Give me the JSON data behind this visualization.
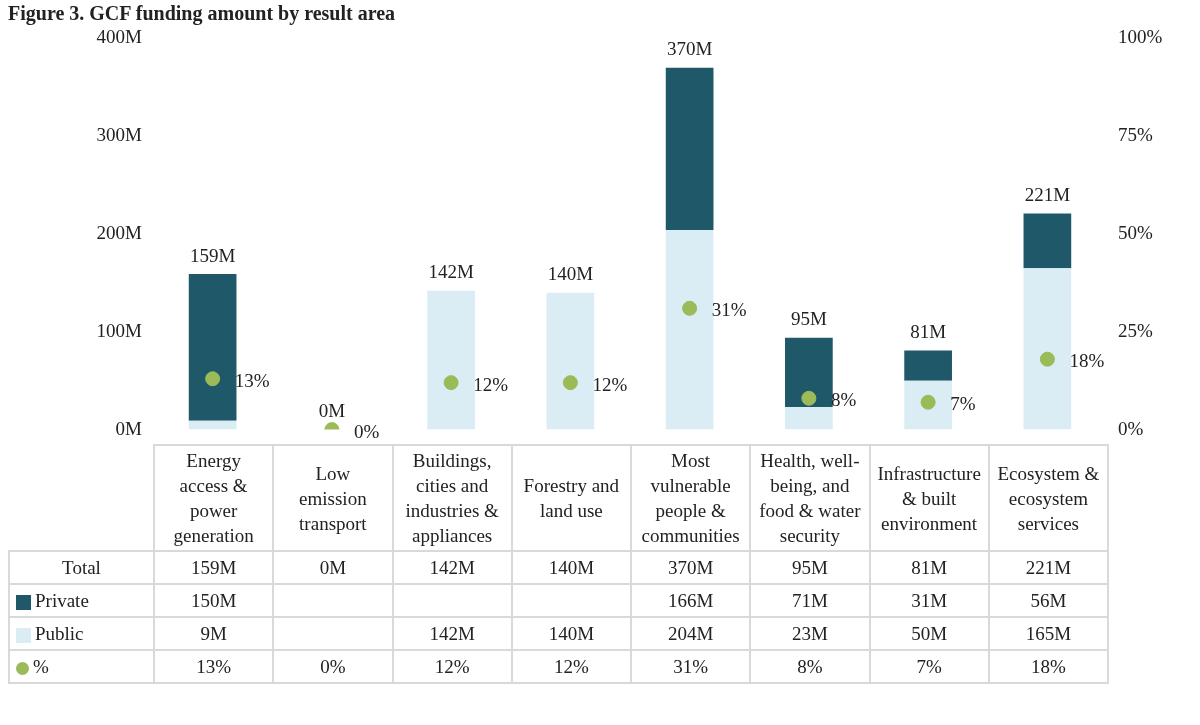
{
  "chart_data": {
    "type": "bar",
    "title": "Figure 3. GCF funding amount by result area",
    "stacked": true,
    "legend": "bottom",
    "annotations": [
      "Total"
    ],
    "categories": [
      "Energy access & power generation",
      "Low emission transport",
      "Buildings, cities and industries & appliances",
      "Forestry and land use",
      "Most vulnerable people & communities",
      "Health, well-being, and food & water security",
      "Infrastructure & built environment",
      "Ecosystem & ecosystem services"
    ],
    "totals": [
      "159M",
      "0M",
      "142M",
      "140M",
      "370M",
      "95M",
      "81M",
      "221M"
    ],
    "series": [
      {
        "name": "Public",
        "color": "#daedf4",
        "values": [
          9,
          null,
          142,
          140,
          204,
          23,
          50,
          165
        ],
        "value_labels": [
          "9M",
          null,
          "142M",
          "140M",
          "204M",
          "23M",
          "50M",
          "165M"
        ]
      },
      {
        "name": "Private",
        "color": "#1f5868",
        "values": [
          150,
          null,
          null,
          null,
          166,
          71,
          31,
          56
        ],
        "value_labels": [
          "150M",
          null,
          null,
          null,
          "166M",
          "71M",
          "31M",
          "56M"
        ]
      },
      {
        "name": "%",
        "type": "scatter",
        "axis": "y2",
        "marker": "circle",
        "color": "#9bbb59",
        "values": [
          13,
          0,
          12,
          12,
          31,
          8,
          7,
          18
        ],
        "value_labels": [
          "13%",
          "0%",
          "12%",
          "12%",
          "31%",
          "8%",
          "7%",
          "18%"
        ]
      }
    ],
    "ylim": [
      0,
      400
    ],
    "yticks": [
      {
        "value": 0,
        "label": "0M"
      },
      {
        "value": 100,
        "label": "100M"
      },
      {
        "value": 200,
        "label": "200M"
      },
      {
        "value": 300,
        "label": "300M"
      },
      {
        "value": 400,
        "label": "400M"
      }
    ],
    "y2lim": [
      0,
      100
    ],
    "y2ticks": [
      {
        "value": 0,
        "label": "0%"
      },
      {
        "value": 25,
        "label": "25%"
      },
      {
        "value": 50,
        "label": "50%"
      },
      {
        "value": 75,
        "label": "75%"
      },
      {
        "value": 100,
        "label": "100%"
      }
    ]
  }
}
